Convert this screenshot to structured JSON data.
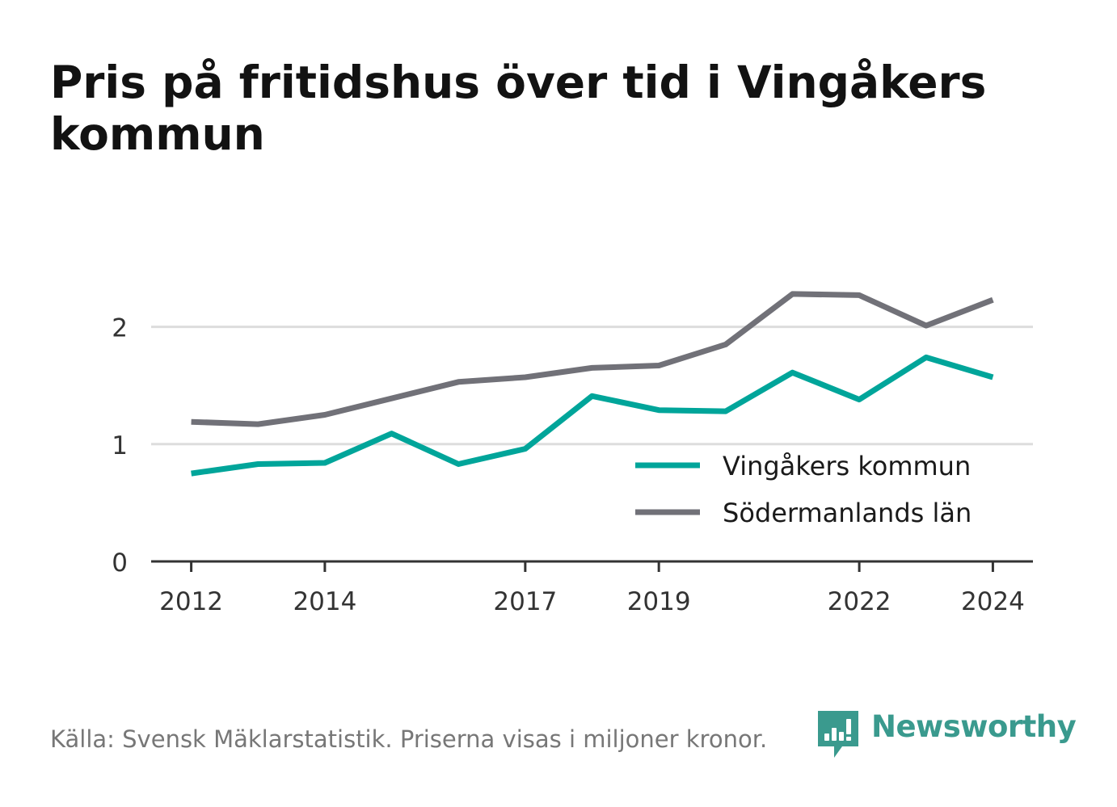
{
  "chart_data": {
    "type": "line",
    "title": "Pris på fritidshus över tid i Vingåkers kommun",
    "x": [
      2012,
      2013,
      2014,
      2015,
      2016,
      2017,
      2018,
      2019,
      2020,
      2021,
      2022,
      2023,
      2024
    ],
    "x_tick_labels": [
      "2012",
      "2014",
      "2017",
      "2019",
      "2022",
      "2024"
    ],
    "x_tick_values": [
      2012,
      2014,
      2017,
      2019,
      2022,
      2024
    ],
    "xlim": [
      2011.4,
      2024.6
    ],
    "ylim": [
      0,
      2.5
    ],
    "y_ticks": [
      0,
      1,
      2
    ],
    "y_tick_labels": [
      "0",
      "1",
      "2"
    ],
    "grid": true,
    "legend_position": "bottom-right",
    "series": [
      {
        "name": "Vingåkers kommun",
        "color": "#00a59a",
        "values": [
          0.75,
          0.83,
          0.84,
          1.09,
          0.83,
          0.96,
          1.41,
          1.29,
          1.28,
          1.61,
          1.38,
          1.74,
          1.57
        ]
      },
      {
        "name": "Södermanlands län",
        "color": "#717178",
        "values": [
          1.19,
          1.17,
          1.25,
          1.39,
          1.53,
          1.57,
          1.65,
          1.67,
          1.85,
          2.28,
          2.27,
          2.01,
          2.23
        ]
      }
    ]
  },
  "source": "Källa: Svensk Mäklarstatistik. Priserna visas i miljoner kronor.",
  "brand": {
    "name": "Newsworthy",
    "logo_icon": "newsworthy-logo-icon",
    "color": "#3a9a8e"
  }
}
